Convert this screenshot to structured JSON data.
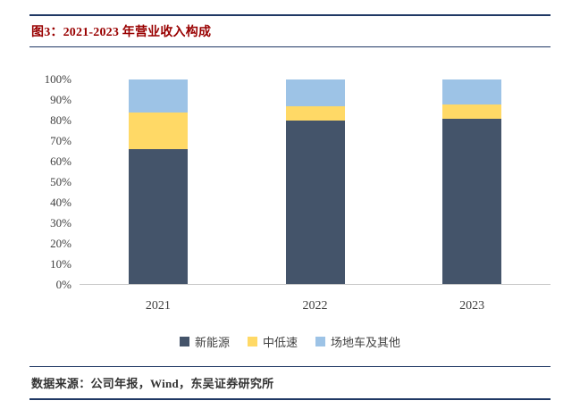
{
  "header": {
    "title": "图3：2021-2023 年营业收入构成"
  },
  "footer": {
    "source": "数据来源：公司年报，Wind，东吴证券研究所"
  },
  "colors": {
    "title_red": "#990000",
    "rule_navy": "#1F3864",
    "axis_text": "#404040"
  },
  "chart_data": {
    "type": "bar",
    "stacked": true,
    "stack_mode": "percent",
    "title": "2021-2023 年营业收入构成",
    "categories": [
      "2021",
      "2022",
      "2023"
    ],
    "series": [
      {
        "name": "新能源",
        "color": "#44546A",
        "values": [
          66,
          80,
          81
        ]
      },
      {
        "name": "中低速",
        "color": "#FFD966",
        "values": [
          18,
          7,
          7
        ]
      },
      {
        "name": "场地车及其他",
        "color": "#9DC3E6",
        "values": [
          16,
          13,
          12
        ]
      }
    ],
    "y_ticks": [
      "100%",
      "90%",
      "80%",
      "70%",
      "60%",
      "50%",
      "40%",
      "30%",
      "20%",
      "10%",
      "0%"
    ],
    "ylim": [
      0,
      100
    ],
    "grid": false,
    "legend_position": "bottom"
  }
}
